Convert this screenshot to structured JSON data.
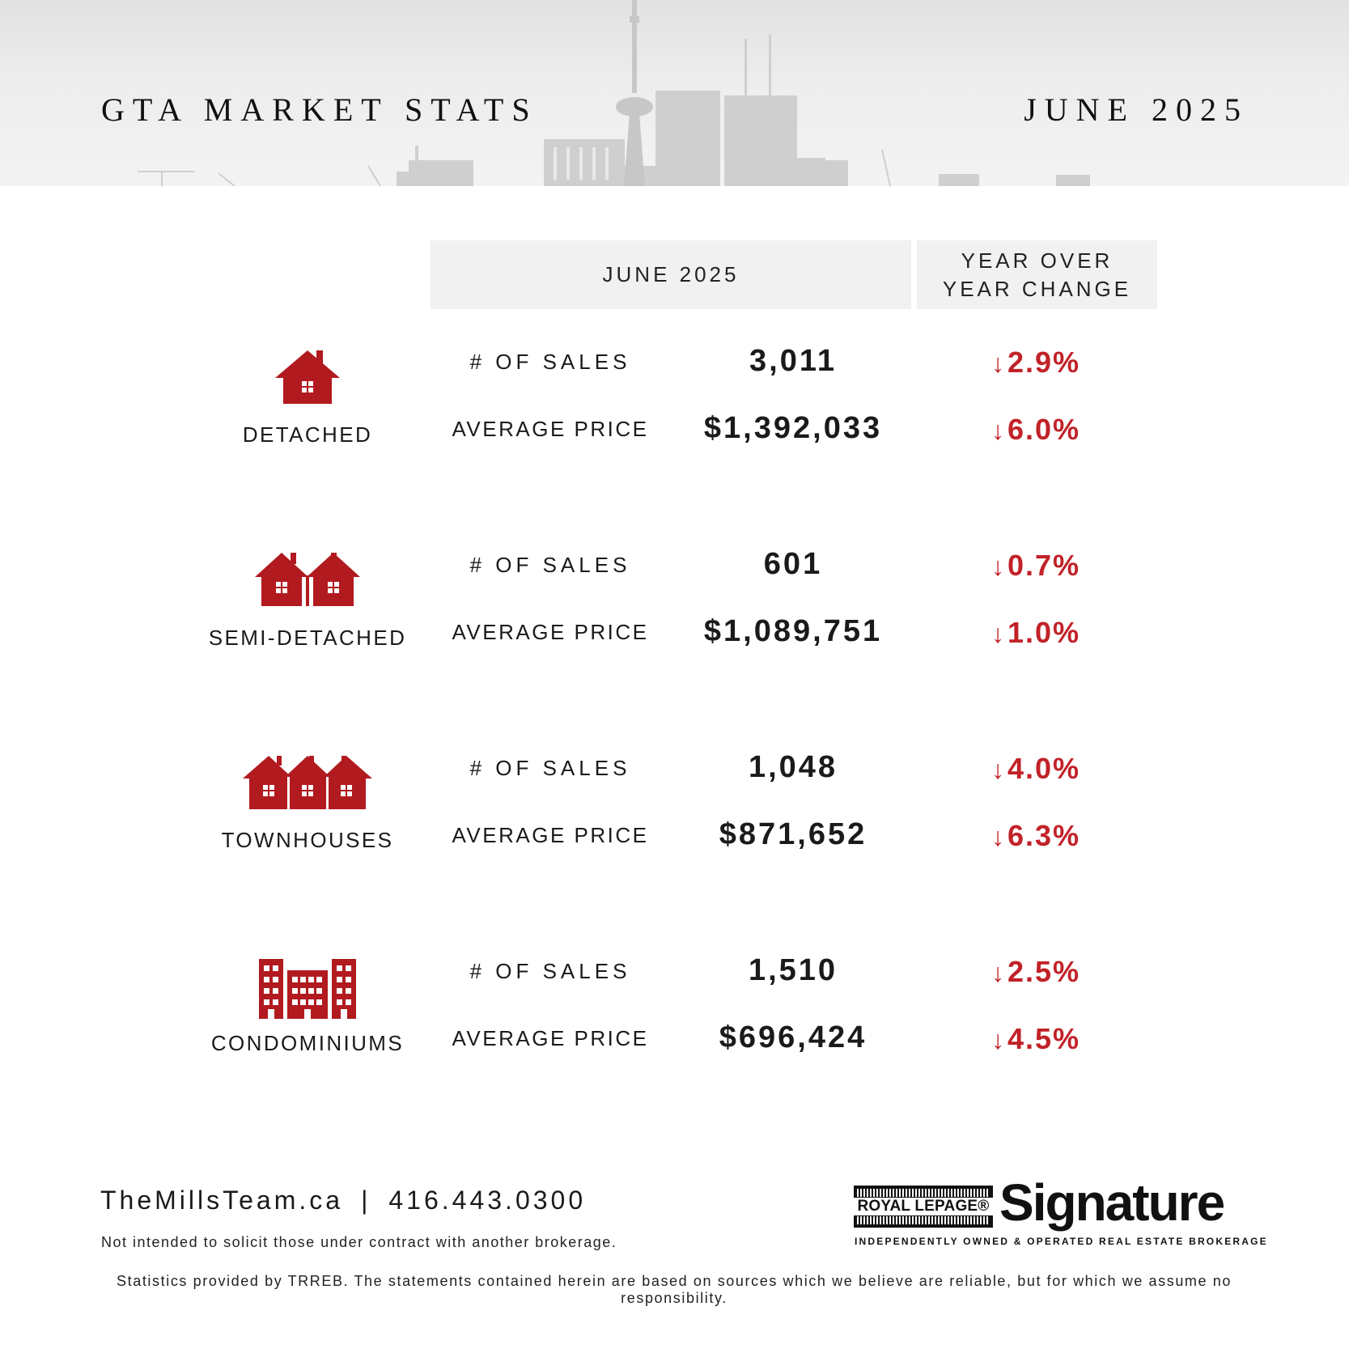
{
  "header": {
    "title": "GTA MARKET STATS",
    "date": "JUNE 2025"
  },
  "table_header": {
    "month": "JUNE 2025",
    "yoy_line1": "YEAR OVER",
    "yoy_line2": "YEAR CHANGE"
  },
  "rows": [
    {
      "type": "DETACHED",
      "icon": "detached-house-icon",
      "sales_label": "# OF SALES",
      "sales": "3,011",
      "sales_change": "2.9%",
      "price_label": "AVERAGE PRICE",
      "price": "$1,392,033",
      "price_change": "6.0%"
    },
    {
      "type": "SEMI-DETACHED",
      "icon": "semi-detached-house-icon",
      "sales_label": "# OF SALES",
      "sales": "601",
      "sales_change": "0.7%",
      "price_label": "AVERAGE PRICE",
      "price": "$1,089,751",
      "price_change": "1.0%"
    },
    {
      "type": "TOWNHOUSES",
      "icon": "townhouse-icon",
      "sales_label": "# OF SALES",
      "sales": "1,048",
      "sales_change": "4.0%",
      "price_label": "AVERAGE PRICE",
      "price": "$871,652",
      "price_change": "6.3%"
    },
    {
      "type": "CONDOMINIUMS",
      "icon": "condominium-icon",
      "sales_label": "# OF SALES",
      "sales": "1,510",
      "sales_change": "2.5%",
      "price_label": "AVERAGE PRICE",
      "price": "$696,424",
      "price_change": "4.5%"
    }
  ],
  "change_direction": "down",
  "change_arrow": "↓",
  "colors": {
    "accent": "#c12228",
    "header_bg": "#ececec",
    "column_header_bg": "#f1f1f1",
    "text": "#1a1a1a"
  },
  "footer": {
    "website": "TheMillsTeam.ca",
    "separator": "|",
    "phone": "416.443.0300",
    "solicit": "Not intended to solicit those under contract with another brokerage.",
    "disclaimer": "Statistics provided by TRREB. The statements contained herein are based on sources which we believe are reliable, but for which we assume no responsibility.",
    "logo": {
      "brand": "ROYAL LEPAGE®",
      "name": "Signature",
      "tagline": "INDEPENDENTLY OWNED & OPERATED REAL ESTATE BROKERAGE"
    }
  }
}
